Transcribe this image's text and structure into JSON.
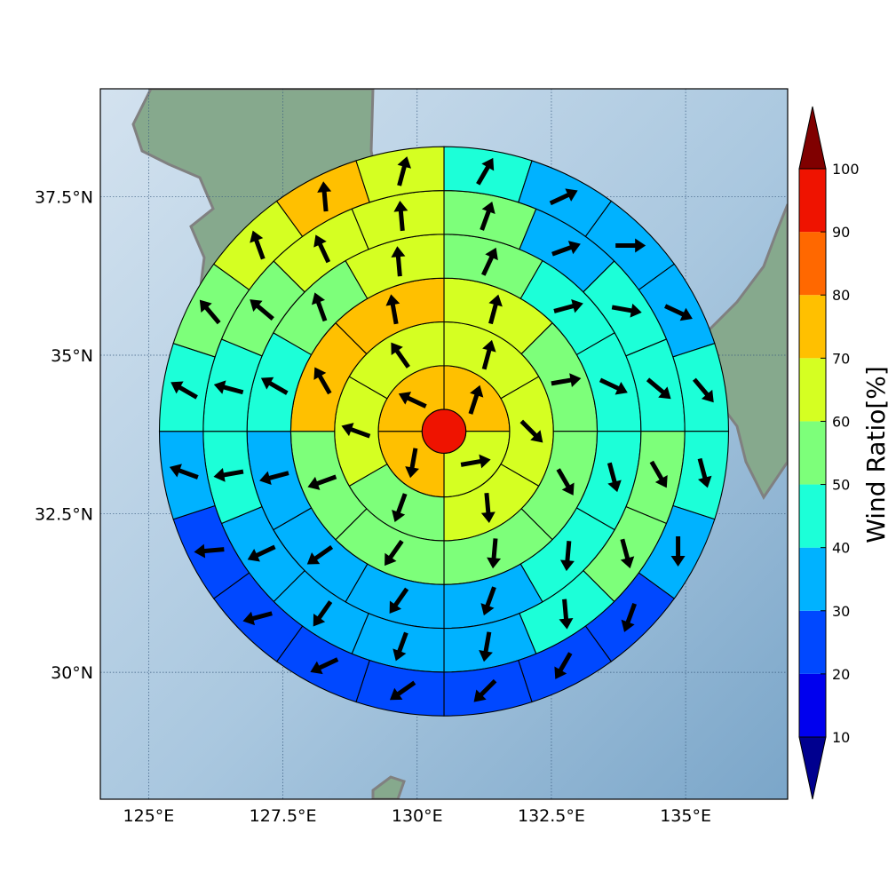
{
  "map": {
    "lon_range": [
      124.1,
      136.9
    ],
    "lat_range": [
      28.0,
      39.2
    ],
    "center_lon": 130.5,
    "center_lat": 33.8,
    "rings": 6,
    "outer_radius_deg": 5.3,
    "xticks": [
      {
        "lon": 125.0,
        "label": "125°E"
      },
      {
        "lon": 127.5,
        "label": "127.5°E"
      },
      {
        "lon": 130.0,
        "label": "130°E"
      },
      {
        "lon": 132.5,
        "label": "132.5°E"
      },
      {
        "lon": 135.0,
        "label": "135°E"
      }
    ],
    "yticks": [
      {
        "lat": 30.0,
        "label": "30°N"
      },
      {
        "lat": 32.5,
        "label": "32.5°N"
      },
      {
        "lat": 35.0,
        "label": "35°N"
      },
      {
        "lat": 37.5,
        "label": "37.5°N"
      }
    ],
    "colors": {
      "ocean": "#b0cde3",
      "land": "#7fa48a",
      "coast": "#808080",
      "grid": "#3b5d80"
    }
  },
  "chart_data": {
    "type": "heatmap",
    "description_units": "Wind Ratio [%] per polar sector around storm center, with mean wind direction arrows",
    "center": {
      "value": 95
    },
    "rings": [
      {
        "ring": 1,
        "sectors": 4,
        "start_deg": 0,
        "values": [
          75,
          65,
          75,
          75
        ],
        "arrows_deg": [
          18,
          80,
          190,
          295
        ]
      },
      {
        "ring": 2,
        "sectors": 6,
        "start_deg": 0,
        "values": [
          65,
          65,
          65,
          55,
          65,
          65
        ],
        "arrows_deg": [
          15,
          135,
          175,
          200,
          290,
          325
        ]
      },
      {
        "ring": 3,
        "sectors": 8,
        "start_deg": 0,
        "values": [
          65,
          55,
          55,
          55,
          55,
          55,
          75,
          75
        ],
        "arrows_deg": [
          15,
          80,
          150,
          185,
          215,
          250,
          330,
          350
        ]
      },
      {
        "ring": 4,
        "sectors": 12,
        "start_deg": 0,
        "values": [
          55,
          45,
          45,
          45,
          45,
          35,
          35,
          35,
          35,
          45,
          55,
          65
        ],
        "arrows_deg": [
          25,
          75,
          115,
          165,
          185,
          200,
          215,
          235,
          255,
          300,
          340,
          355
        ]
      },
      {
        "ring": 5,
        "sectors": 16,
        "start_deg": 0,
        "values": [
          55,
          35,
          45,
          45,
          55,
          55,
          45,
          35,
          35,
          35,
          35,
          45,
          45,
          55,
          65,
          65
        ],
        "arrows_deg": [
          20,
          70,
          100,
          130,
          150,
          165,
          175,
          190,
          200,
          215,
          245,
          260,
          285,
          310,
          335,
          355
        ]
      },
      {
        "ring": 6,
        "sectors": 20,
        "start_deg": 0,
        "values": [
          45,
          35,
          35,
          35,
          45,
          45,
          35,
          25,
          25,
          25,
          25,
          25,
          25,
          25,
          35,
          45,
          55,
          65,
          75,
          65
        ],
        "arrows_deg": [
          30,
          65,
          90,
          115,
          140,
          165,
          180,
          200,
          210,
          225,
          235,
          245,
          255,
          265,
          290,
          300,
          320,
          340,
          355,
          15
        ]
      }
    ],
    "colorbar": {
      "label": "Wind Ratio[%]",
      "ticks": [
        10,
        20,
        30,
        40,
        50,
        60,
        70,
        80,
        90,
        100
      ],
      "levels": [
        {
          "min": 0,
          "max": 10,
          "color": "#00008f",
          "extend": "under"
        },
        {
          "min": 10,
          "max": 20,
          "color": "#0000ee"
        },
        {
          "min": 20,
          "max": 30,
          "color": "#0048ff"
        },
        {
          "min": 30,
          "max": 40,
          "color": "#00b2ff"
        },
        {
          "min": 40,
          "max": 50,
          "color": "#1cffd8"
        },
        {
          "min": 50,
          "max": 60,
          "color": "#7dff7a"
        },
        {
          "min": 60,
          "max": 70,
          "color": "#d5ff22"
        },
        {
          "min": 70,
          "max": 80,
          "color": "#ffc000"
        },
        {
          "min": 80,
          "max": 90,
          "color": "#ff6800"
        },
        {
          "min": 90,
          "max": 100,
          "color": "#ef1300"
        },
        {
          "min": 100,
          "max": 110,
          "color": "#800000",
          "extend": "over"
        }
      ]
    }
  }
}
